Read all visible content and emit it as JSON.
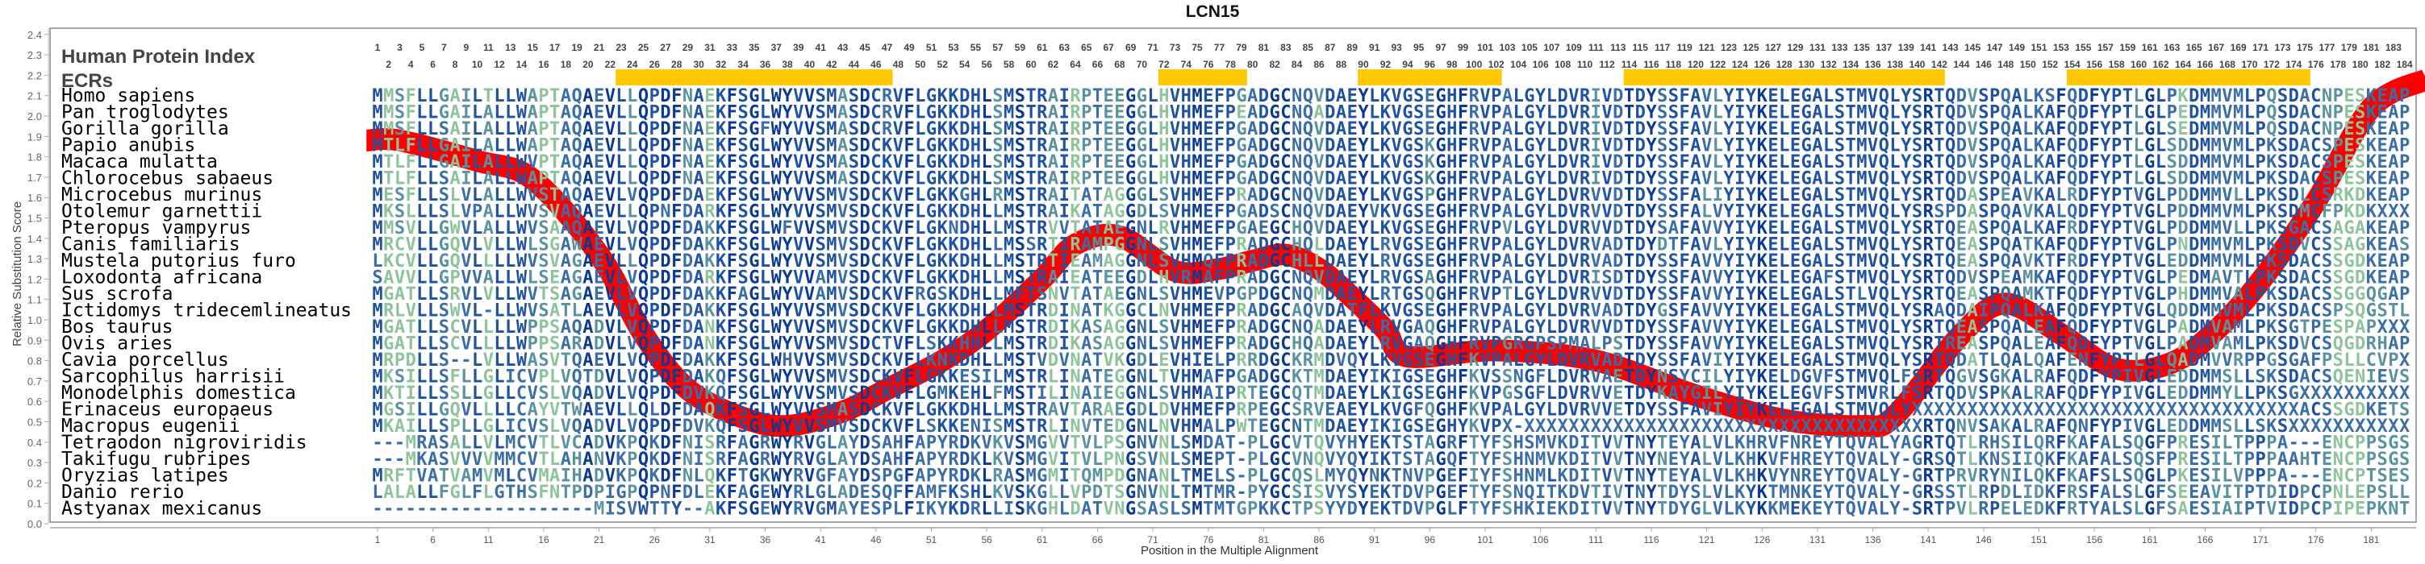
{
  "chart_data": {
    "type": "line",
    "title": "LCN15",
    "header_label": "Human Protein Index",
    "ecr_label": "ECRs",
    "ylabel": "Relative Substitution Score",
    "xlabel": "Position in the Multiple Alignment",
    "ylim": [
      0,
      2.4
    ],
    "yticks": [
      "0.0",
      "0.1",
      "0.2",
      "0.3",
      "0.4",
      "0.5",
      "0.6",
      "0.7",
      "0.8",
      "0.9",
      "1.0",
      "1.1",
      "1.2",
      "1.3",
      "1.4",
      "1.5",
      "1.6",
      "1.7",
      "1.8",
      "1.9",
      "2.0",
      "2.1",
      "2.2",
      "2.3",
      "2.4"
    ],
    "xticks": [
      1,
      6,
      11,
      16,
      21,
      26,
      31,
      36,
      41,
      46,
      51,
      56,
      61,
      66,
      71,
      76,
      81,
      86,
      91,
      96,
      101,
      106,
      111,
      116,
      121,
      126,
      131,
      136,
      141,
      146,
      151,
      156,
      161,
      166,
      171,
      176,
      181
    ],
    "human_positions": 184,
    "ecrs": [
      [
        23,
        47
      ],
      [
        72,
        79
      ],
      [
        90,
        102
      ],
      [
        114,
        142
      ],
      [
        154,
        175
      ]
    ],
    "ecr_color": "#ffc800",
    "curve_color": "#ff0000",
    "residue_colors": [
      "#0c3a92",
      "#1f52a0",
      "#3b6ea6",
      "#5a939f",
      "#8dc49b"
    ],
    "score_curve": [
      [
        0,
        1.88
      ],
      [
        3,
        1.88
      ],
      [
        10,
        1.78
      ],
      [
        15,
        1.69
      ],
      [
        21,
        1.32
      ],
      [
        25,
        0.93
      ],
      [
        29,
        0.66
      ],
      [
        34,
        0.52
      ],
      [
        38,
        0.48
      ],
      [
        43,
        0.55
      ],
      [
        47,
        0.66
      ],
      [
        52,
        0.8
      ],
      [
        56,
        0.95
      ],
      [
        61,
        1.2
      ],
      [
        64,
        1.37
      ],
      [
        68,
        1.41
      ],
      [
        73,
        1.24
      ],
      [
        77,
        1.25
      ],
      [
        80,
        1.29
      ],
      [
        83,
        1.32
      ],
      [
        86,
        1.25
      ],
      [
        89,
        1.11
      ],
      [
        92,
        0.95
      ],
      [
        94,
        0.82
      ],
      [
        102,
        0.85
      ],
      [
        111,
        0.8
      ],
      [
        120,
        0.63
      ],
      [
        128,
        0.51
      ],
      [
        135,
        0.48
      ],
      [
        138,
        0.53
      ],
      [
        144,
        0.93
      ],
      [
        148,
        1.08
      ],
      [
        153,
        0.93
      ],
      [
        158,
        0.76
      ],
      [
        163,
        0.79
      ],
      [
        167,
        0.95
      ],
      [
        171,
        1.19
      ],
      [
        176,
        1.58
      ],
      [
        181,
        2.04
      ],
      [
        186,
        2.18
      ]
    ],
    "species": [
      {
        "name": "Homo sapiens",
        "sequence": "MMSFLLGAILTLLWAPTAQAEVLLQPDFNAEKFSGLWYVVSMASDCRVFLGKKDHLSMSTRAIRPTEEGGLHVHMEFPGADGCNQVDAEYLKVGSEGHFRVPALGYLDVRIVDTDYSSFAVLYIYKELEGALSTMVQLYSRTQDVSPQALKSFQDFYPTLGLPKDMMVMLPQSDACNPESKEAP"
      },
      {
        "name": "Pan troglodytes",
        "sequence": "MMSFLLGAILALLWAPTAQAEVLLQPDFNAEKFSGLWYVVSMASDCRVFLGKKDHLSMSTRAIRPTEEGGLHVHMEFPEADGCNQADAEYLKVGSEGHFRVPALGYLDVRIVDTDYSSFAVLYIYKELEGALSTMVQLYSRTQDVSPQALKAFQDFYPTLGLPEDMMVMLPQSDACNPESKEAP"
      },
      {
        "name": "Gorilla gorilla",
        "sequence": "MMSFLLSAILALLWAPTAQAEVLLQPDFNAEKFSGFWYVVSMASDCRVFLGKKDHLSMSTRAIRPTEEGGLHVHMEFPGADGCNQVDAEYLKVGSEGHFRVPALGYLDVRIVDTDYSSFAVLYIYKELEGALSTMVQLYSRTQDVSPQALKAFQDFYPTLGLSEDMMVMLPQSDACNPESKEAP"
      },
      {
        "name": "Papio anubis",
        "sequence": "MTLFLLGAILALLWAPTAQAEVLLQPDFNAEKFSGLWYVVSMASDCKVFLGKKDHLSMSTRAIRPTEEGGLHVHMEFPGADGCNQVDAEYLKVGSKGHFRVPALGYLDVRIVDTDYSSFAVLYIYKELEGALSTMVQLYSRTQDVSPQALKAFQDFYPTLGLSDDMMVMLPKSDACSPESKEAP"
      },
      {
        "name": "Macaca mulatta",
        "sequence": "MTLFLLGAILALLWVPTAQAEVLLQPDFNAEKFSGLWYVVSMASDCKVFLGKKDHLSMSTRAIRPTEEGGLHVHMEFPGADGCNQVDAEYLKVGSKGHFRVPALGYLDVRIVDTDYSSFAVLYIYKELEGALSTMVQLYSRTQDVSPQALKAFQDFYPTLGLSDDMMVMLPKSDACSPESKEAP"
      },
      {
        "name": "Chlorocebus sabaeus",
        "sequence": "MTLFLLSAILALLWAPTAQAEVLLQPDFNAEKFSGLWYVVSMASDCKVFLGKKDHLSMSTRAIRPTEEGGLHVHMEFPGADGCNQVDAEYLKVGSKGHFRVPALGYLDVRIVDTDYSSFAVLYIYKELEGALSTMVQLYSRTQDVSPQALKAFQDFYPTLGLSDDMMVMLPKSDACSPESKEAP"
      },
      {
        "name": "Microcebus murinus",
        "sequence": "MESFLLSLVLALLWVSTAQAEVLVQPDFDAEKFSGLWYVVSMVSDCKVFLGKKGHLRMSTRAITATAGGGLSVHMEFPRADGCNQVDAEYLKVGSPGHFRVPALGYLDVRVVDTDYSSFALIYIYKELEGALSTMVQLYSRTQDASPEAVKALRDFYPTVGLPDDMMVLLPKSDLCSRKDKEAP"
      },
      {
        "name": "Otolemur garnettii",
        "sequence": "MKSLLLSLVPALLWVSVAQAEVLLQPNFDARKFSGLWYVVSMVSDCKVFLGKKDHLLMSTRAIKATAGGDLSVHMEFPGADSCNQVDAEYVKVGSEGHFRVPALGYLDVRVVDTDYSSFALVYIYKELEGALSTMVQLYSRSPDASPQAVKALQDFYPTVGLPDDMMVMLPKSDMCFPKDKXXX"
      },
      {
        "name": "Pteropus vampyrus",
        "sequence": "MMSVLLGWVLALLWVSAAQAEVLVQPDFDAKKFSGLWFVVSMVSDCKVFLGKNDHLLMSTRVVTATAEGNLRVHMEFPGAEGCHQVDAEYLKVGSEGHFRVPVLGYLDVRVVDTDYSAFAVVYIYKELEGALSTMVQLYSRTQEASPQALKAFRDFYPTVGLPDDMMVLLPKSGACSAGAKEAP"
      },
      {
        "name": "Canis familiaris",
        "sequence": "MRCVLLGQVLVLLWLSGAWAEVLVQPDFDAKKFSGLWYVVSMVSDCKVFLGKKDHLLMSSRTIRAMPGGNLSVHMEFPRADGCHQLDAEYLRVGSEGHFRVPALGYLDVRVADTDYDTFAVLYIYKELEGALSTMVQLYSRTQEASPQATKAFQDFYPTVGLPNDMMVMLPKSDVCSSAGKEAS"
      },
      {
        "name": "Mustela putorius furo",
        "sequence": "LKCVLLGQVLLLLWVSVAGAEVLLQPDFDAKKFSGLWYVVSMVSDCKVFLGKKDHLLMSTRTIEAMAGGNLSVHMQFPRADGCHLLDAEYLRVGSEGHFRVPALGYLDVRVADTDYSSFAVVYIYKELEGALSTMVQLYSRTQEASPQAVKTFRDFYPTVGLEDDMMVMLPKSDACSSGDKEAP"
      },
      {
        "name": "Loxodonta africana",
        "sequence": "SAVVLLGPVVALLWLSEAGAEVLVQPDFDARKFSGLWYVVAMVSDCKVFLGKKDHLLMSTRAIEATEEGDLHVRMAFPRADGCNQVDAEYLRVGSAGHFRVPALGYLDVRISDTDYSSFAVVYIYKELEGAFSTMVQLYSRTQDVSPEAMKAFQDFYPTVGLPEDMAVTLPKSDACSSGDKEAP"
      },
      {
        "name": "Sus scrofa",
        "sequence": "MGATLLSRVLVLLWVTSAGAEVLVQPDFDAKKFAGLWYVVAMVSDCKVFRGSKDHLLMFTSNVTATAEGNLSVHMEVPGPDGCNQMDAEYLRTGSQGHFRVPTLGYLDVRVVDTDYSSFAVVYIYKELEGALSTLVQLYSRTQEASPQAMKTFQDFYPTVGLPHDMMVALPKSDACSSGGQGAP"
      },
      {
        "name": "Ictidomys tridecemlineatus",
        "sequence": "MRLVLLSWVL-LLWVSATLAEVLVQPDFDAKKFSGLWYVVSMVSDCKVFLGKKDHLLMSTRDINATKGGCLNVHMEFPRADGCAQVDATFLKVGSEGHFRVPALGYLDVRVADTDYGSFAVVYIYKELEGALSTMVQLYSRAQDAIPQALKAFQDFYPTVGLQDDMMVMLPKSDACSPSQGSTL"
      },
      {
        "name": "Bos taurus",
        "sequence": "MGATLLSCVLLLLWPPSAQADVLVQPDFDANKFSGLWYVVSMVSDCKVFLGKKDHLLMSTRDIKASAGGNLSVHMEFPRADGCNQADAEYLRVGAQGHFRVPALGYLDVRVVDTDYSSFAVVYIYKELEGALSTMVQLYSRTQEASPQALEAFQDFYPTVGLPADMVAMLPKSGTPESPAPXXX"
      },
      {
        "name": "Ovis aries",
        "sequence": "MGATLLSCVLLLLWPPSARADVLVQPDFDANKFSGLWYVVSMVSDCTVFLSKKHHLLMSTRDIKASAGGNLSVHMEFPRADGCHQADAEYLRVGAQGHFRVPGRGPSPMALPSTDYSSFAVVYIYKELEGALSTMVQLYSRTREASPQALEAFQDFYPTVGLPADMVAMLPKSDVCSQGDRHAP"
      },
      {
        "name": "Cavia porcellus",
        "sequence": "MRPDLLS--LVLLWASVTQAEVLVQPDFDAKKFSGLWHVVSMVSDCKVFLKNKDHLLMSTVDVNATVKGDLEVHIELPRRDGCKRMDVQYLKVGSEGHFKVPALGYLDVRVADTDYSSFAVIYIYKELEGALSTMVQLYSRTQDATLQALQAFENFYPTLGLQADMVVRPPGSGAFPSLLCVPX"
      },
      {
        "name": "Sarcophilus harrisii",
        "sequence": "MKSILLSFLLGLICVPLVQTDVLVQPDFDAKQFSGLWYVVSMVSDCKVFLGKKESILMSTRLINATEGGNLTVHMAFPGADGCKTMDAEYIKIGSEGHFKVSSNGFLDVRVAETDYNSYCILYIYKELDGVFSTMVQLFSRTQGVSGKALRAFQDFYPIVGLEDDMMSLLSKSDACSQENIEVS"
      },
      {
        "name": "Monodelphis domestica",
        "sequence": "MKTILLSSLLGLLCVSLVQADVLVQPDFDVKQFSGLWYVVSMVSDCKVFLGMKEHLFMSTILINAIEGGNLSVHMAIPRTEGCQTMDAEYLKIGSEGHFKVPGSGFLDVRVVETDYKAYGILYIYKELEGVFSTMVRLFSRTQDVSPKALRAFQDFYPIVGLEDDMMYLLPKSGXXXXXXXXXX"
      },
      {
        "name": "Erinaceus europaeus",
        "sequence": "MGSILLGQVLLLLCAYVTWAEVLLQLDFDAQKFSGLWYVVSMASDCKVFLGKKDHLLMSTRAVTARAEGDLDVHMEFPRPEGCSRVEAEYLKVGFQGHFKVPALGYLDVRVVETDYSSFAVIYIYKELEGALSTMVQLYXXXXXXXXXXXXXXXXXXXXXXXXXXXXXXXXXXXACSSGDKETS"
      },
      {
        "name": "Macropus eugenii",
        "sequence": "MKAILLSPLLGLICVSLVQADVLVQPDFDVKQFSGLWYVVSMVSDCKVFLSKKENISMSTRLINVTEDGNLNVHMALPWTEGCNTMDAEYIKIGSEGHYKVPX-XXXXXXXXXXXXXXXXXXXXXXXXXXXXXXXXXXXXRTQNVSAKALRAFQNFYPIVGLEDDMMSLLSKSXXXXXXXXXXX"
      },
      {
        "name": "Tetraodon nigroviridis",
        "sequence": "---MRASALLVLMCVTLVCADVKPQKDFNISRFAGRWYRVGLAYDSAHFAPYRDKVKVSMGVVTVLPSGNVNLSMDAT-PLGCVTQVYHYEKTSTAGRFTYFSHSMVKDITVVTNYTEYALVLKHRVFNREYTQVALYAGRTQTLRHSILQRFKAFALSQGFPRESILTPPPA---ENCPPSGS"
      },
      {
        "name": "Takifugu rubripes",
        "sequence": "---MKASVVVVMMCVTLAHANVKPQKDFNISRFAGRWYRVGLAYDSAHFAPYRDKLKVSMGVITVLPNGSVNLSMEPT-PLGCVNQVYQYIKTSTAGQFTYFSHNMVKDITVVTNYNEYALVLKHKVFHREYTQVALY-GRSQTLKNSIIQKFKAFALSQSFPRESILTPPPAAHTENCPPSGS"
      },
      {
        "name": "Oryzias latipes",
        "sequence": "MRFTVATVAMVMLCVMAIHADVKPQKDFNLQKFTGKWYRVGFAYDSPGFAPYRDKLRASMGMITQMPDGNANLTMELS-PLGCQSLMYQYNKTNVPGEFIYFSHNMLKDITVVTNYTEYALVLKHKVYNREYTQVALY-GRTPRVRYNILQKFKAFSLSQGLPKESILVPPPA---ENCPTSES"
      },
      {
        "name": "Danio rerio",
        "sequence": "LALALLFGLFLGTHSFNTPDPIGPQPNFDLEKFAGEWYRLGLADESQFFAMFKSHLKVSKGLLVPDTSGNVNLTMTMR-PYGCSISVYSYEKTDVPGEFTYFSNQITKDVTIVTNYTDYSLVLKYKTMNKEYTQVALY-GRSSTLRPDLIDKFRSFALSLGFSEEAVITPTDIDPCPNLEPSLL"
      },
      {
        "name": "Astyanax mexicanus",
        "sequence": "--------------------MISVWTTY--AKFSGEWYRVGMAYESPLFIKYKDRLLISKGHLDATVNGSASLSMTMTGPKKCTPSYYDYEKTDVPGLFTYFSHKIEKDITVVTNYTDYGLVLKYKKMEKEYTQVALY-SRTPVLRPELEDKFRTYALSLGFSAESIAIPTVIDPCPIPEPKNT"
      }
    ]
  }
}
